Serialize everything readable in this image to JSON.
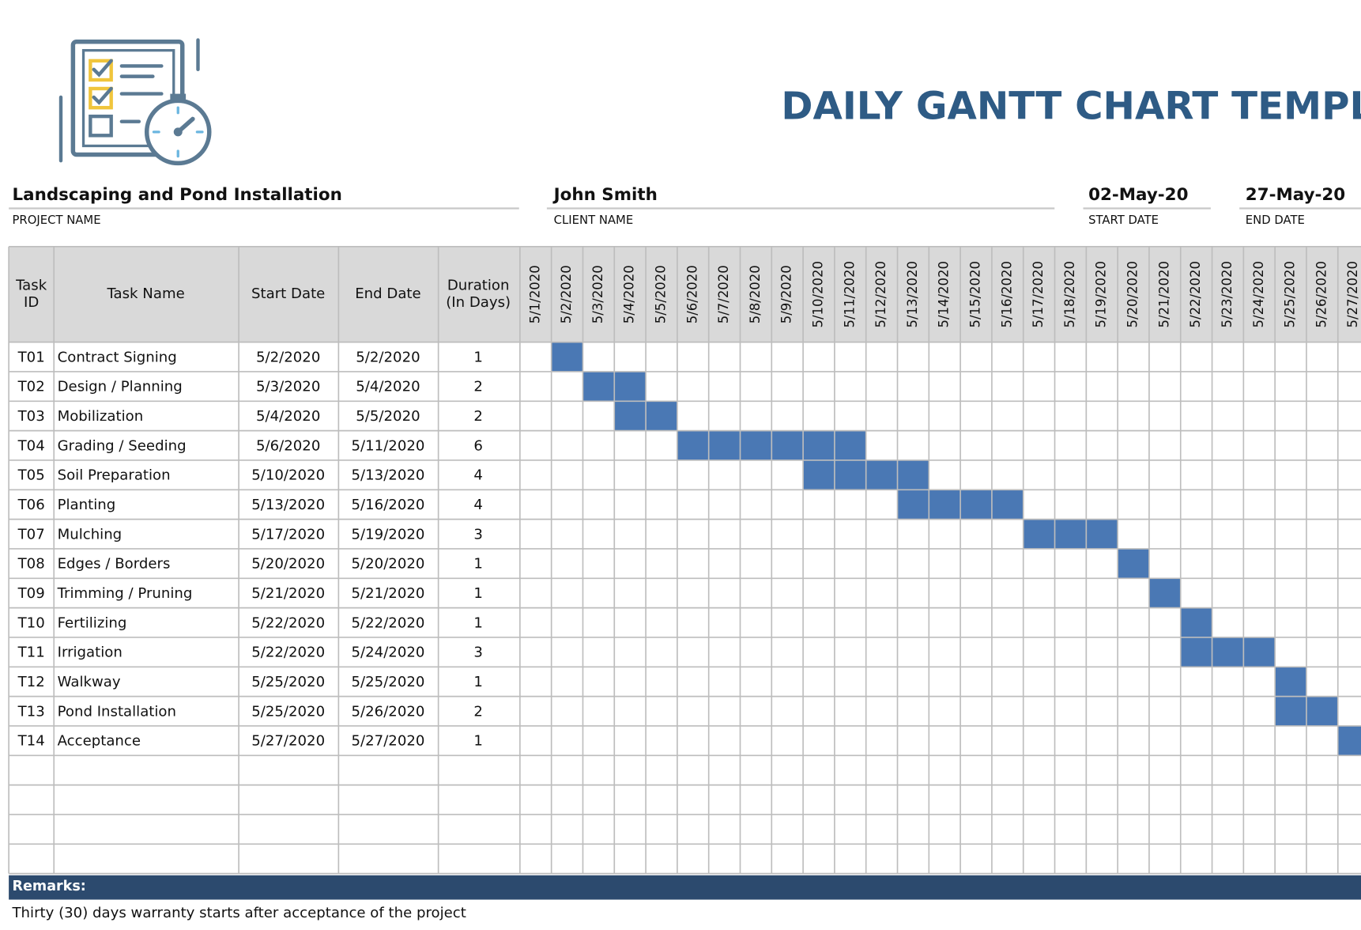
{
  "header": {
    "title": "DAILY GANTT CHART TEMPLATE"
  },
  "project": {
    "name": "Landscaping and Pond Installation",
    "name_label": "PROJECT NAME",
    "client": "John Smith",
    "client_label": "CLIENT NAME",
    "start_date": "02-May-20",
    "start_label": "START DATE",
    "end_date": "27-May-20",
    "end_label": "END DATE"
  },
  "table": {
    "columns": [
      "Task ID",
      "Task Name",
      "Start Date",
      "End Date",
      "Duration (In Days)"
    ],
    "dates": [
      "5/1/2020",
      "5/2/2020",
      "5/3/2020",
      "5/4/2020",
      "5/5/2020",
      "5/6/2020",
      "5/7/2020",
      "5/8/2020",
      "5/9/2020",
      "5/10/2020",
      "5/11/2020",
      "5/12/2020",
      "5/13/2020",
      "5/14/2020",
      "5/15/2020",
      "5/16/2020",
      "5/17/2020",
      "5/18/2020",
      "5/19/2020",
      "5/20/2020",
      "5/21/2020",
      "5/22/2020",
      "5/23/2020",
      "5/24/2020",
      "5/25/2020",
      "5/26/2020",
      "5/27/2020"
    ],
    "rows": [
      [
        "T01",
        "Contract Signing",
        "5/2/2020",
        "5/2/2020",
        1
      ],
      [
        "T02",
        "Design / Planning",
        "5/3/2020",
        "5/4/2020",
        2
      ],
      [
        "T03",
        "Mobilization",
        "5/4/2020",
        "5/5/2020",
        2
      ],
      [
        "T04",
        "Grading / Seeding",
        "5/6/2020",
        "5/11/2020",
        6
      ],
      [
        "T05",
        "Soil Preparation",
        "5/10/2020",
        "5/13/2020",
        4
      ],
      [
        "T06",
        "Planting",
        "5/13/2020",
        "5/16/2020",
        4
      ],
      [
        "T07",
        "Mulching",
        "5/17/2020",
        "5/19/2020",
        3
      ],
      [
        "T08",
        "Edges / Borders",
        "5/20/2020",
        "5/20/2020",
        1
      ],
      [
        "T09",
        "Trimming / Pruning",
        "5/21/2020",
        "5/21/2020",
        1
      ],
      [
        "T10",
        "Fertilizing",
        "5/22/2020",
        "5/22/2020",
        1
      ],
      [
        "T11",
        "Irrigation",
        "5/22/2020",
        "5/24/2020",
        3
      ],
      [
        "T12",
        "Walkway",
        "5/25/2020",
        "5/25/2020",
        1
      ],
      [
        "T13",
        "Pond Installation",
        "5/25/2020",
        "5/26/2020",
        2
      ],
      [
        "T14",
        "Acceptance",
        "5/27/2020",
        "5/27/2020",
        1
      ]
    ]
  },
  "remarks": {
    "label": "Remarks:",
    "text": "Thirty (30) days warranty starts after acceptance of the project"
  }
}
